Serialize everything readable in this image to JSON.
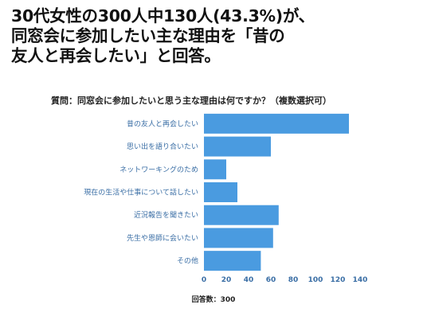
{
  "headline": {
    "line1": "30代女性の300人中130人(43.3%)が、",
    "line2": "同窓会に参加したい主な理由を「昔の",
    "line3": "友人と再会したい」と回答。"
  },
  "chart_data": {
    "type": "bar",
    "orientation": "horizontal",
    "title": "質問：同窓会に参加したいと思う主な理由は何ですか？（複数選択可）",
    "categories": [
      "昔の友人と再会したい",
      "思い出を語り合いたい",
      "ネットワーキングのため",
      "現在の生活や仕事について話したい",
      "近況報告を聞きたい",
      "先生や恩師に会いたい",
      "その他"
    ],
    "values": [
      130,
      60,
      20,
      30,
      67,
      62,
      51
    ],
    "xlim": [
      0,
      140
    ],
    "xticks": [
      "0",
      "20",
      "40",
      "60",
      "80",
      "100",
      "120",
      "140"
    ],
    "grid": false,
    "bar_color": "#4a9be0",
    "footnote": "回答数：300"
  }
}
